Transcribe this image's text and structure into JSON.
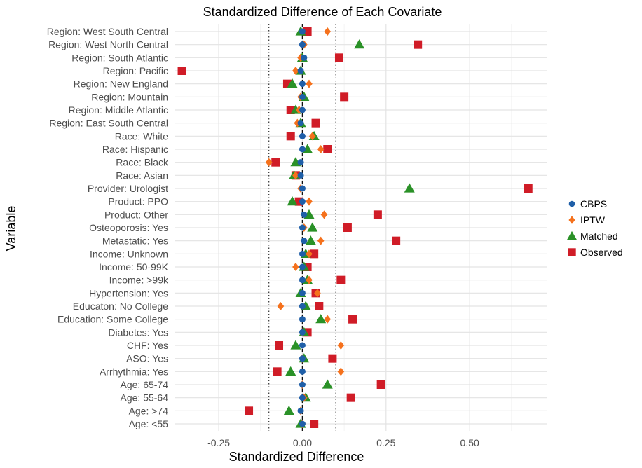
{
  "chart_data": {
    "type": "scatter",
    "title": "Standardized Difference of Each Covariate",
    "xlabel": "Standardized Difference",
    "ylabel": "Variable",
    "xlim": [
      -0.38,
      0.73
    ],
    "x_ticks": [
      -0.25,
      0.0,
      0.25,
      0.5
    ],
    "x_tick_labels": [
      "-0.25",
      "0.00",
      "0.25",
      "0.50"
    ],
    "reference_lines": {
      "solid_dashed": 0.0,
      "dotted": [
        -0.1,
        0.1
      ]
    },
    "grid": true,
    "legend_position": "right",
    "categories": [
      "Region: West South Central",
      "Region: West North Central",
      "Region: South Atlantic",
      "Region: Pacific",
      "Region: New England",
      "Region: Mountain",
      "Region: Middle Atlantic",
      "Region: East South Central",
      "Race: White",
      "Race: Hispanic",
      "Race: Black",
      "Race: Asian",
      "Provider: Urologist",
      "Product: PPO",
      "Product: Other",
      "Osteoporosis: Yes",
      "Metastatic: Yes",
      "Income: Unknown",
      "Income: 50-99K",
      "Income: >99k",
      "Hypertension: Yes",
      "Educaton: No College",
      "Education: Some College",
      "Diabetes: Yes",
      "CHF: Yes",
      "ASO: Yes",
      "Arrhythmia: Yes",
      "Age: 65-74",
      "Age: 55-64",
      "Age: >74",
      "Age: <55"
    ],
    "series": [
      {
        "name": "CBPS",
        "color": "#1f5fa8",
        "shape": "circle",
        "values": [
          0.0,
          0.0,
          0.005,
          -0.005,
          0.0,
          0.0,
          0.0,
          -0.005,
          0.0,
          0.0,
          -0.005,
          -0.005,
          0.0,
          0.0,
          0.005,
          0.0,
          0.005,
          0.0,
          0.0,
          0.0,
          0.0,
          0.0,
          0.0,
          0.0,
          0.0,
          0.0,
          0.0,
          0.0,
          0.0,
          -0.005,
          0.0
        ]
      },
      {
        "name": "IPTW",
        "color": "#f5711c",
        "shape": "diamond",
        "values": [
          0.075,
          0.005,
          -0.005,
          -0.02,
          0.02,
          -0.005,
          -0.01,
          -0.015,
          0.03,
          0.055,
          -0.1,
          -0.02,
          -0.005,
          0.02,
          0.065,
          0.005,
          0.055,
          0.02,
          -0.02,
          0.02,
          0.045,
          -0.065,
          0.075,
          0.0,
          0.115,
          0.0,
          0.115,
          0.0,
          0.005,
          -0.005,
          0.0
        ]
      },
      {
        "name": "Matched",
        "color": "#2a9127",
        "shape": "triangle",
        "values": [
          -0.005,
          0.17,
          0.0,
          -0.005,
          -0.03,
          0.005,
          -0.02,
          -0.005,
          0.035,
          0.015,
          -0.02,
          -0.025,
          0.32,
          -0.03,
          0.02,
          0.03,
          0.025,
          0.01,
          0.005,
          0.015,
          -0.005,
          0.01,
          0.055,
          0.005,
          -0.02,
          0.005,
          -0.035,
          0.075,
          0.01,
          -0.04,
          -0.005
        ]
      },
      {
        "name": "Observed",
        "color": "#d01c27",
        "shape": "square",
        "values": [
          0.015,
          0.345,
          0.11,
          -0.36,
          -0.045,
          0.125,
          -0.035,
          0.04,
          -0.035,
          0.075,
          -0.08,
          -0.02,
          0.675,
          -0.01,
          0.225,
          0.135,
          0.28,
          0.035,
          0.015,
          0.115,
          0.04,
          0.05,
          0.15,
          0.015,
          -0.07,
          0.09,
          -0.075,
          0.235,
          0.145,
          -0.16,
          0.035
        ]
      }
    ]
  }
}
